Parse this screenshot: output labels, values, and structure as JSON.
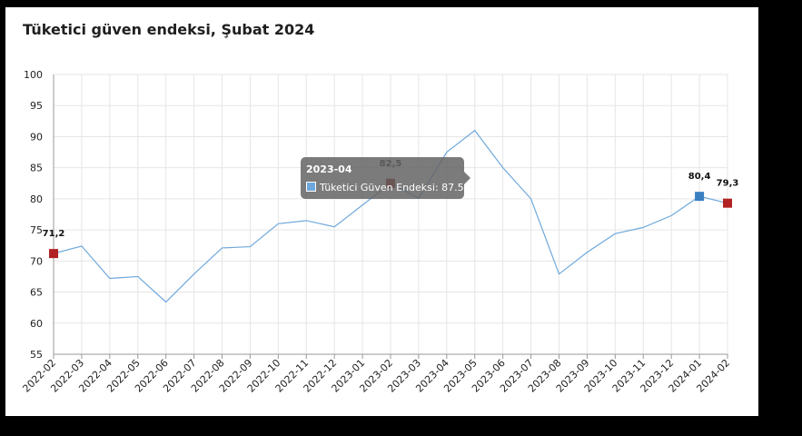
{
  "chart_data": {
    "type": "line",
    "title": "Tüketici güven endeksi, Şubat 2024",
    "categories": [
      "2022-02",
      "2022-03",
      "2022-04",
      "2022-05",
      "2022-06",
      "2022-07",
      "2022-08",
      "2022-09",
      "2022-10",
      "2022-11",
      "2022-12",
      "2023-01",
      "2023-02",
      "2023-03",
      "2023-04",
      "2023-05",
      "2023-06",
      "2023-07",
      "2023-08",
      "2023-09",
      "2023-10",
      "2023-11",
      "2023-12",
      "2024-01",
      "2024-02"
    ],
    "series": [
      {
        "name": "Tüketici Güven Endeksi",
        "color": "#6fa8dc",
        "values": [
          71.2,
          72.4,
          67.2,
          67.5,
          63.4,
          67.9,
          72.1,
          72.3,
          76.0,
          76.5,
          75.5,
          79.0,
          82.5,
          80.1,
          87.5,
          91.0,
          85.0,
          80.0,
          67.9,
          71.4,
          74.4,
          75.4,
          77.3,
          80.4,
          79.3
        ]
      }
    ],
    "ylim": [
      55,
      100
    ],
    "yticks": [
      55,
      60,
      65,
      70,
      75,
      80,
      85,
      90,
      95,
      100
    ],
    "grid": true,
    "highlighted_points": [
      {
        "index": 0,
        "label": "71,2",
        "color": "#b22222"
      },
      {
        "index": 12,
        "label": "82,5",
        "color": "#8b0000"
      },
      {
        "index": 23,
        "label": "80,4",
        "color": "#3a7fc1"
      },
      {
        "index": 24,
        "label": "79,3",
        "color": "#b22222"
      }
    ],
    "tooltip": {
      "title": "2023-04",
      "text": "Tüketici Güven Endeksi: 87.5"
    }
  }
}
